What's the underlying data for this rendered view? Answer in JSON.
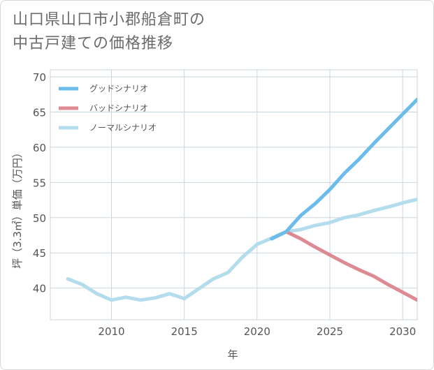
{
  "title_line1": "山口県山口市小郡船倉町の",
  "title_line2": "中古戸建ての価格推移",
  "chart_data": {
    "type": "line",
    "xlabel": "年",
    "ylabel": "坪（3.3㎡）単価（万円）",
    "xlim": [
      2005.8,
      2031
    ],
    "ylim": [
      35.5,
      71
    ],
    "x_ticks": [
      2010,
      2015,
      2020,
      2025,
      2030
    ],
    "y_ticks": [
      40,
      45,
      50,
      55,
      60,
      65,
      70
    ],
    "grid": true,
    "legend_position": "top-left",
    "series": [
      {
        "name": "グッドシナリオ",
        "color": "#6bbcea",
        "x": [
          2021,
          2022,
          2023,
          2024,
          2025,
          2026,
          2027,
          2028,
          2029,
          2030,
          2031
        ],
        "y": [
          47.0,
          48.0,
          50.3,
          52.0,
          54.0,
          56.3,
          58.3,
          60.5,
          62.6,
          64.7,
          66.8
        ]
      },
      {
        "name": "バッドシナリオ",
        "color": "#de8a92",
        "x": [
          2021,
          2022,
          2023,
          2024,
          2025,
          2026,
          2027,
          2028,
          2029,
          2030,
          2031
        ],
        "y": [
          47.0,
          48.0,
          47.0,
          45.8,
          44.7,
          43.6,
          42.6,
          41.7,
          40.5,
          39.4,
          38.3
        ]
      },
      {
        "name": "ノーマルシナリオ",
        "color": "#b3dced",
        "x": [
          2007,
          2008,
          2009,
          2010,
          2011,
          2012,
          2013,
          2014,
          2015,
          2016,
          2017,
          2018,
          2019,
          2020,
          2021,
          2022,
          2023,
          2024,
          2025,
          2026,
          2027,
          2028,
          2029,
          2030,
          2031
        ],
        "y": [
          41.3,
          40.5,
          39.2,
          38.3,
          38.7,
          38.3,
          38.6,
          39.2,
          38.5,
          39.9,
          41.3,
          42.2,
          44.4,
          46.2,
          47.1,
          48.0,
          48.3,
          48.9,
          49.3,
          50.0,
          50.4,
          51.0,
          51.5,
          52.1,
          52.6
        ]
      }
    ]
  }
}
